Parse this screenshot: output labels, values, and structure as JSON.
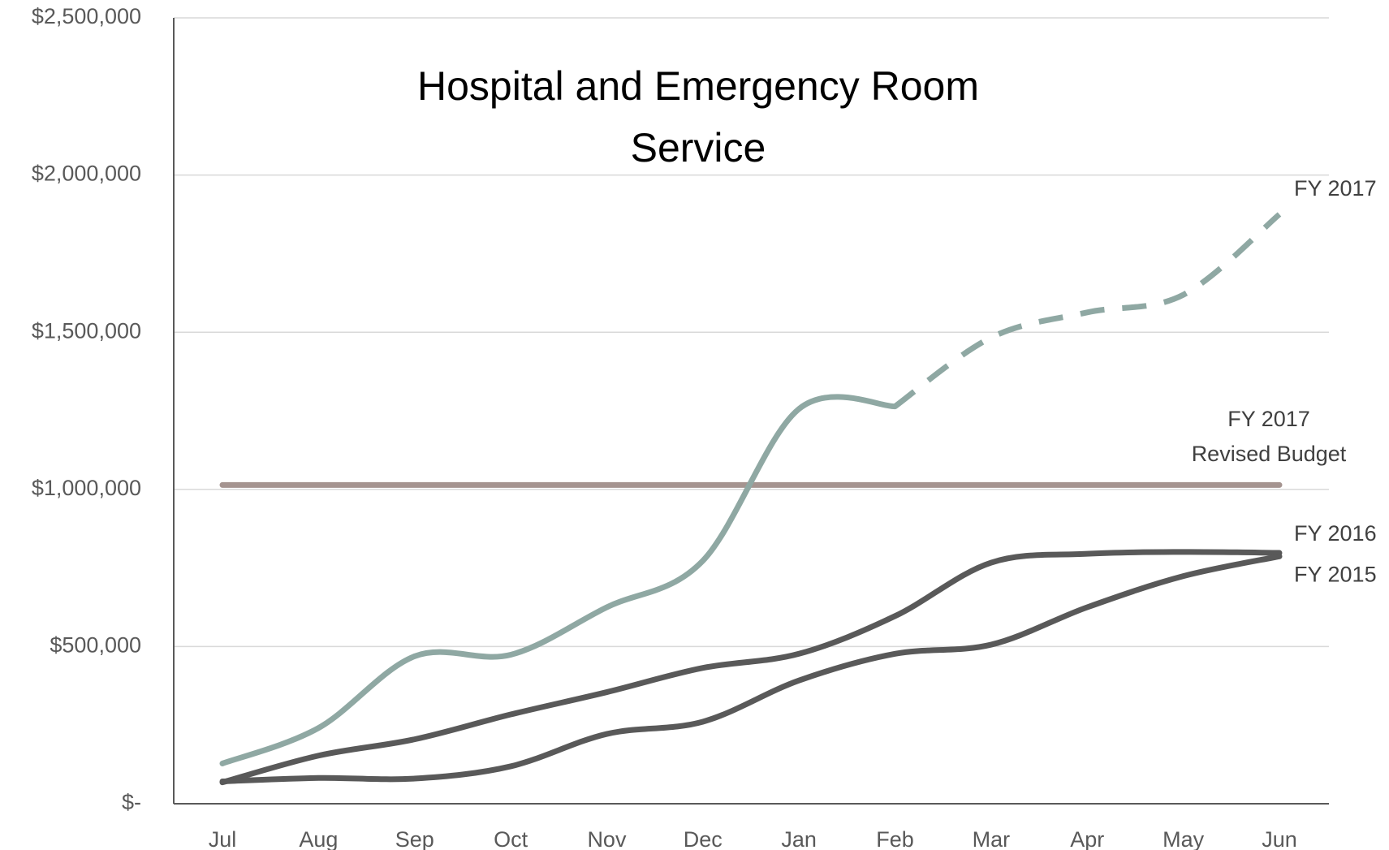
{
  "chart_data": {
    "type": "line",
    "title": [
      "Hospital and Emergency Room",
      "Service"
    ],
    "categories": [
      "Jul",
      "Aug",
      "Sep",
      "Oct",
      "Nov",
      "Dec",
      "Jan",
      "Feb",
      "Mar",
      "Apr",
      "May",
      "Jun"
    ],
    "series": [
      {
        "name": "FY 2017",
        "color": "#8fa8a3",
        "dashed_from": 7,
        "values": [
          128000,
          241000,
          469000,
          474000,
          625000,
          773000,
          1256000,
          1264000,
          1483000,
          1563000,
          1619000,
          1875000
        ]
      },
      {
        "name": "FY 2016",
        "color": "#595959",
        "values": [
          68000,
          153000,
          205000,
          284000,
          355000,
          432000,
          477000,
          597000,
          767000,
          795000,
          801000,
          798000
        ]
      },
      {
        "name": "FY 2015",
        "color": "#595959",
        "values": [
          71000,
          82000,
          80000,
          119000,
          222000,
          261000,
          392000,
          477000,
          506000,
          625000,
          724000,
          787000
        ]
      }
    ],
    "reference_line": {
      "name": [
        "FY 2017",
        "Revised Budget"
      ],
      "value": 1014000,
      "color": "#a59490"
    },
    "ylim": [
      0,
      2500000
    ],
    "yticks": [
      {
        "value": 0,
        "label": "$-"
      },
      {
        "value": 500000,
        "label": "$500,000"
      },
      {
        "value": 1000000,
        "label": "$1,000,000"
      },
      {
        "value": 1500000,
        "label": "$1,500,000"
      },
      {
        "value": 2000000,
        "label": "$2,000,000"
      },
      {
        "value": 2500000,
        "label": "$2,500,000"
      }
    ],
    "grid": true
  }
}
